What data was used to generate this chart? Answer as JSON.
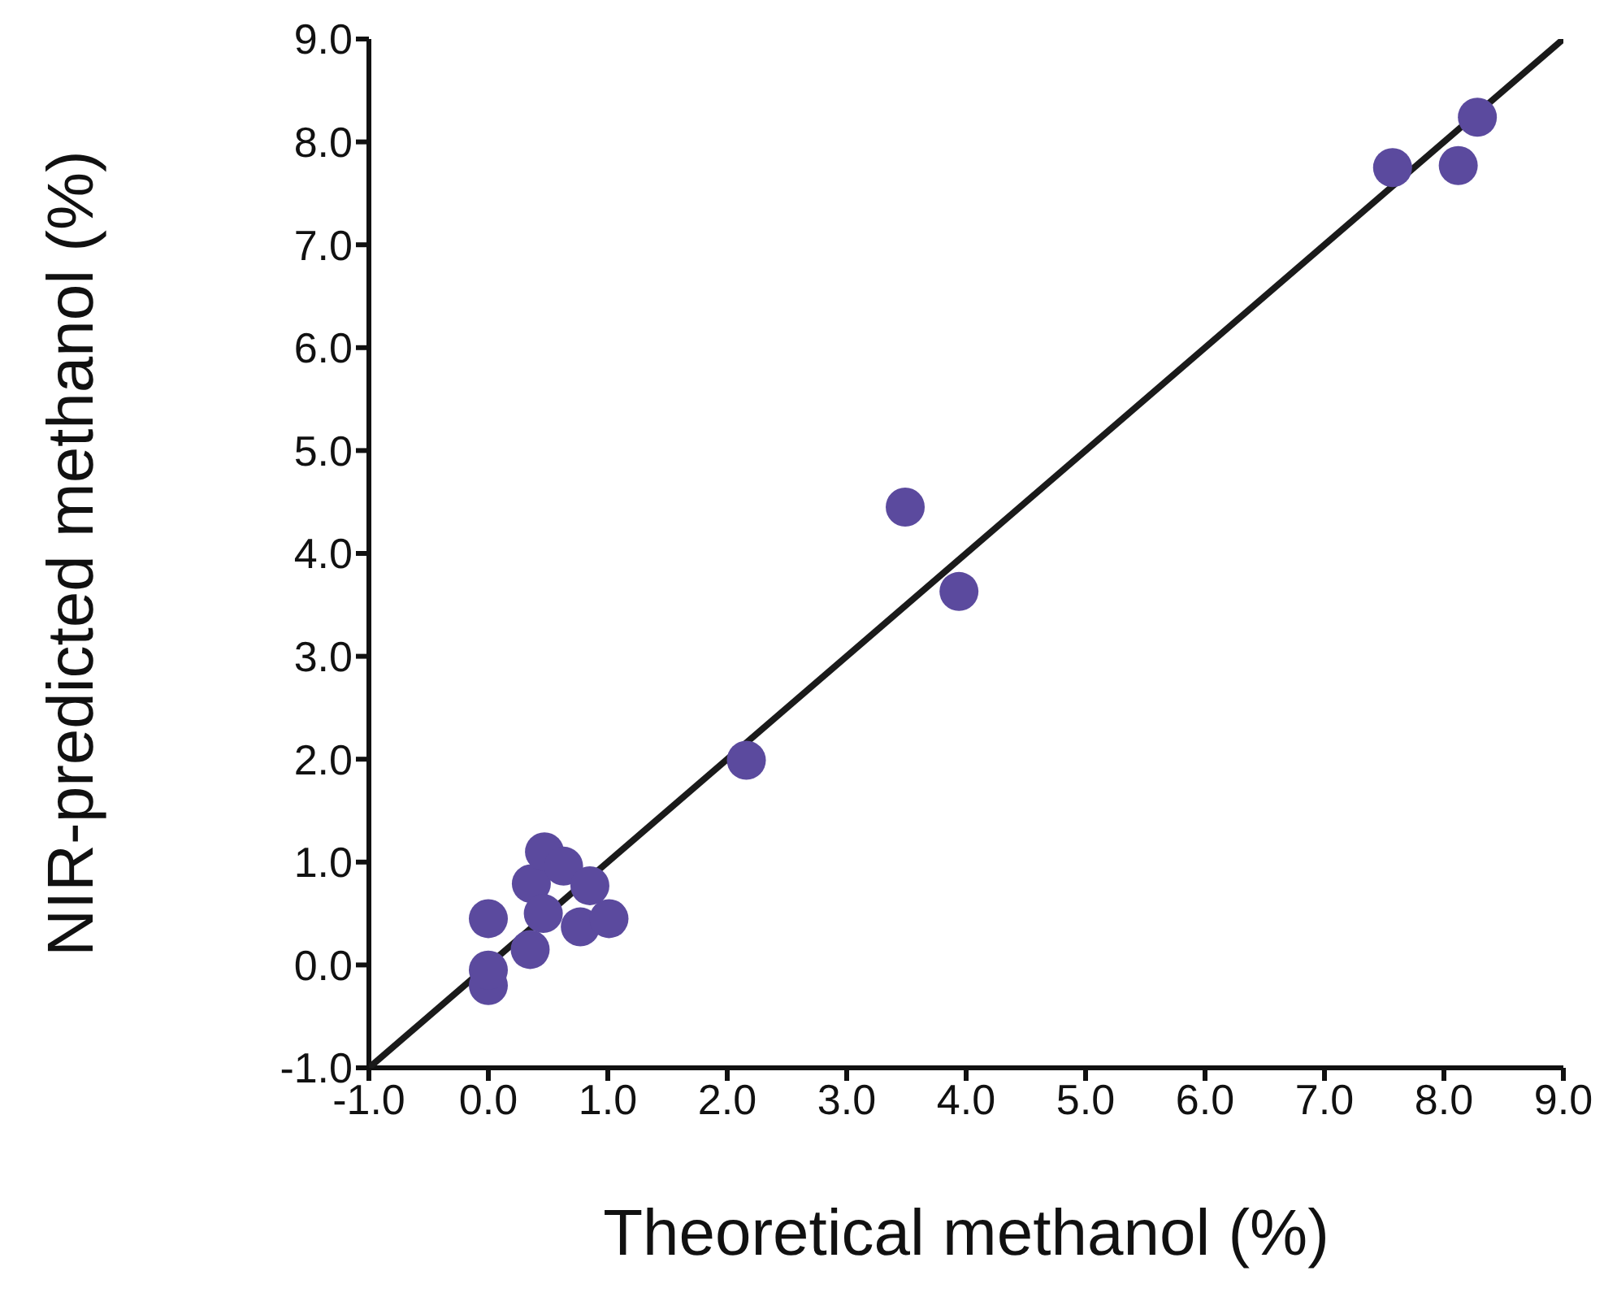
{
  "chart_data": {
    "type": "scatter",
    "xlabel": "Theoretical methanol (%)",
    "ylabel": "NIR-predicted methanol (%)",
    "xlim": [
      -1.0,
      9.0
    ],
    "ylim": [
      -1.0,
      9.0
    ],
    "xticks": [
      {
        "value": -1,
        "label": "-1.0"
      },
      {
        "value": 0,
        "label": "0.0"
      },
      {
        "value": 1,
        "label": "1.0"
      },
      {
        "value": 2,
        "label": "2.0"
      },
      {
        "value": 3,
        "label": "3.0"
      },
      {
        "value": 4,
        "label": "4.0"
      },
      {
        "value": 5,
        "label": "5.0"
      },
      {
        "value": 6,
        "label": "6.0"
      },
      {
        "value": 7,
        "label": "7.0"
      },
      {
        "value": 8,
        "label": "8.0"
      },
      {
        "value": 9,
        "label": "9.0"
      }
    ],
    "yticks": [
      {
        "value": -1,
        "label": "-1.0"
      },
      {
        "value": 0,
        "label": "0.0"
      },
      {
        "value": 1,
        "label": "1.0"
      },
      {
        "value": 2,
        "label": "2.0"
      },
      {
        "value": 3,
        "label": "3.0"
      },
      {
        "value": 4,
        "label": "4.0"
      },
      {
        "value": 5,
        "label": "5.0"
      },
      {
        "value": 6,
        "label": "6.0"
      },
      {
        "value": 7,
        "label": "7.0"
      },
      {
        "value": 8,
        "label": "8.0"
      },
      {
        "value": 9,
        "label": "9.0"
      }
    ],
    "marker": "circle",
    "series": [
      {
        "type": "line",
        "marker": "none",
        "color": "#1a1a1a",
        "x": [
          -1.0,
          9.0
        ],
        "values": [
          -1.0,
          9.0
        ]
      },
      {
        "color": "#5b4a9e",
        "x": [
          0.0,
          0.0,
          0.0,
          0.35,
          0.36,
          0.47,
          0.46,
          0.63,
          0.77,
          0.85,
          1.01,
          2.16,
          3.49,
          3.94,
          7.57,
          8.12,
          8.28
        ],
        "values": [
          0.45,
          -0.2,
          -0.05,
          0.15,
          0.79,
          1.1,
          0.5,
          0.96,
          0.37,
          0.77,
          0.45,
          1.99,
          4.45,
          3.63,
          7.75,
          7.77,
          8.24
        ]
      }
    ]
  }
}
